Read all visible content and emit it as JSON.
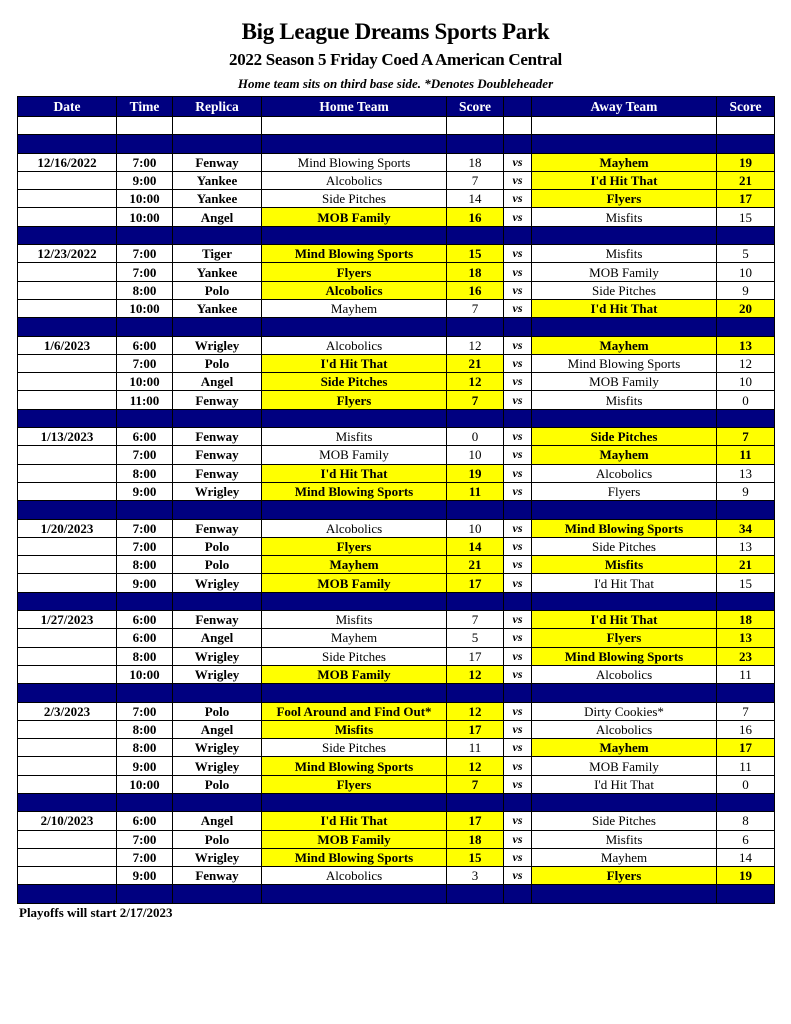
{
  "title": "Big League Dreams Sports Park",
  "subtitle": "2022 Season 5 Friday Coed A American Central",
  "note": "Home team sits on third base side.  *Denotes Doubleheader",
  "colors": {
    "header": "#000080",
    "winner_highlight": "#ffff00"
  },
  "columns": [
    "Date",
    "Time",
    "Replica",
    "Home Team",
    "Score",
    "",
    "Away Team",
    "Score"
  ],
  "vs_label": "vs",
  "weeks": [
    {
      "date": "12/16/2022",
      "games": [
        {
          "time": "7:00",
          "replica": "Fenway",
          "home": "Mind Blowing Sports",
          "home_score": "18",
          "away": "Mayhem",
          "away_score": "19",
          "winner": "away"
        },
        {
          "time": "9:00",
          "replica": "Yankee",
          "home": "Alcobolics",
          "home_score": "7",
          "away": "I'd Hit That",
          "away_score": "21",
          "winner": "away"
        },
        {
          "time": "10:00",
          "replica": "Yankee",
          "home": "Side Pitches",
          "home_score": "14",
          "away": "Flyers",
          "away_score": "17",
          "winner": "away"
        },
        {
          "time": "10:00",
          "replica": "Angel",
          "home": "MOB Family",
          "home_score": "16",
          "away": "Misfits",
          "away_score": "15",
          "winner": "home"
        }
      ]
    },
    {
      "date": "12/23/2022",
      "games": [
        {
          "time": "7:00",
          "replica": "Tiger",
          "home": "Mind Blowing Sports",
          "home_score": "15",
          "away": "Misfits",
          "away_score": "5",
          "winner": "home"
        },
        {
          "time": "7:00",
          "replica": "Yankee",
          "home": "Flyers",
          "home_score": "18",
          "away": "MOB Family",
          "away_score": "10",
          "winner": "home"
        },
        {
          "time": "8:00",
          "replica": "Polo",
          "home": "Alcobolics",
          "home_score": "16",
          "away": "Side Pitches",
          "away_score": "9",
          "winner": "home"
        },
        {
          "time": "10:00",
          "replica": "Yankee",
          "home": "Mayhem",
          "home_score": "7",
          "away": "I'd Hit That",
          "away_score": "20",
          "winner": "away"
        }
      ]
    },
    {
      "date": "1/6/2023",
      "games": [
        {
          "time": "6:00",
          "replica": "Wrigley",
          "home": "Alcobolics",
          "home_score": "12",
          "away": "Mayhem",
          "away_score": "13",
          "winner": "away"
        },
        {
          "time": "7:00",
          "replica": "Polo",
          "home": "I'd Hit That",
          "home_score": "21",
          "away": "Mind Blowing Sports",
          "away_score": "12",
          "winner": "home"
        },
        {
          "time": "10:00",
          "replica": "Angel",
          "home": "Side Pitches",
          "home_score": "12",
          "away": "MOB Family",
          "away_score": "10",
          "winner": "home"
        },
        {
          "time": "11:00",
          "replica": "Fenway",
          "home": "Flyers",
          "home_score": "7",
          "away": "Misfits",
          "away_score": "0",
          "winner": "home"
        }
      ]
    },
    {
      "date": "1/13/2023",
      "games": [
        {
          "time": "6:00",
          "replica": "Fenway",
          "home": "Misfits",
          "home_score": "0",
          "away": "Side Pitches",
          "away_score": "7",
          "winner": "away"
        },
        {
          "time": "7:00",
          "replica": "Fenway",
          "home": "MOB Family",
          "home_score": "10",
          "away": "Mayhem",
          "away_score": "11",
          "winner": "away"
        },
        {
          "time": "8:00",
          "replica": "Fenway",
          "home": "I'd Hit That",
          "home_score": "19",
          "away": "Alcobolics",
          "away_score": "13",
          "winner": "home"
        },
        {
          "time": "9:00",
          "replica": "Wrigley",
          "home": "Mind Blowing Sports",
          "home_score": "11",
          "away": "Flyers",
          "away_score": "9",
          "winner": "home"
        }
      ]
    },
    {
      "date": "1/20/2023",
      "games": [
        {
          "time": "7:00",
          "replica": "Fenway",
          "home": "Alcobolics",
          "home_score": "10",
          "away": "Mind Blowing Sports",
          "away_score": "34",
          "winner": "away"
        },
        {
          "time": "7:00",
          "replica": "Polo",
          "home": "Flyers",
          "home_score": "14",
          "away": "Side Pitches",
          "away_score": "13",
          "winner": "home"
        },
        {
          "time": "8:00",
          "replica": "Polo",
          "home": "Mayhem",
          "home_score": "21",
          "away": "Misfits",
          "away_score": "21",
          "winner": "both"
        },
        {
          "time": "9:00",
          "replica": "Wrigley",
          "home": "MOB Family",
          "home_score": "17",
          "away": "I'd Hit That",
          "away_score": "15",
          "winner": "home"
        }
      ]
    },
    {
      "date": "1/27/2023",
      "games": [
        {
          "time": "6:00",
          "replica": "Fenway",
          "home": "Misfits",
          "home_score": "7",
          "away": "I'd Hit That",
          "away_score": "18",
          "winner": "away"
        },
        {
          "time": "6:00",
          "replica": "Angel",
          "home": "Mayhem",
          "home_score": "5",
          "away": "Flyers",
          "away_score": "13",
          "winner": "away"
        },
        {
          "time": "8:00",
          "replica": "Wrigley",
          "home": "Side Pitches",
          "home_score": "17",
          "away": "Mind Blowing Sports",
          "away_score": "23",
          "winner": "away"
        },
        {
          "time": "10:00",
          "replica": "Wrigley",
          "home": "MOB Family",
          "home_score": "12",
          "away": "Alcobolics",
          "away_score": "11",
          "winner": "home"
        }
      ]
    },
    {
      "date": "2/3/2023",
      "games": [
        {
          "time": "7:00",
          "replica": "Polo",
          "home": "Fool Around and Find Out*",
          "home_score": "12",
          "away": "Dirty Cookies*",
          "away_score": "7",
          "winner": "home"
        },
        {
          "time": "8:00",
          "replica": "Angel",
          "home": "Misfits",
          "home_score": "17",
          "away": "Alcobolics",
          "away_score": "16",
          "winner": "home"
        },
        {
          "time": "8:00",
          "replica": "Wrigley",
          "home": "Side Pitches",
          "home_score": "11",
          "away": "Mayhem",
          "away_score": "17",
          "winner": "away"
        },
        {
          "time": "9:00",
          "replica": "Wrigley",
          "home": "Mind Blowing Sports",
          "home_score": "12",
          "away": "MOB Family",
          "away_score": "11",
          "winner": "home"
        },
        {
          "time": "10:00",
          "replica": "Polo",
          "home": "Flyers",
          "home_score": "7",
          "away": "I'd Hit That",
          "away_score": "0",
          "winner": "home"
        }
      ]
    },
    {
      "date": "2/10/2023",
      "games": [
        {
          "time": "6:00",
          "replica": "Angel",
          "home": "I'd Hit That",
          "home_score": "17",
          "away": "Side Pitches",
          "away_score": "8",
          "winner": "home"
        },
        {
          "time": "7:00",
          "replica": "Polo",
          "home": "MOB Family",
          "home_score": "18",
          "away": "Misfits",
          "away_score": "6",
          "winner": "home"
        },
        {
          "time": "7:00",
          "replica": "Wrigley",
          "home": "Mind Blowing Sports",
          "home_score": "15",
          "away": "Mayhem",
          "away_score": "14",
          "winner": "home"
        },
        {
          "time": "9:00",
          "replica": "Fenway",
          "home": "Alcobolics",
          "home_score": "3",
          "away": "Flyers",
          "away_score": "19",
          "winner": "away"
        }
      ]
    }
  ],
  "footer": "Playoffs will start 2/17/2023"
}
